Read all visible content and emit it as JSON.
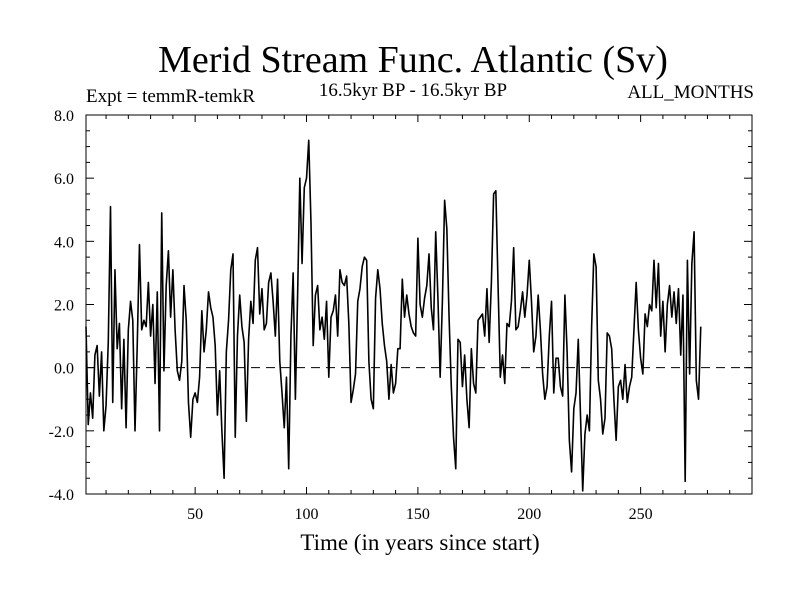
{
  "header": {
    "title": "Merid Stream Func. Atlantic (Sv)",
    "experiment": "Expt = temmR-temkR",
    "period": "16.5kyr BP - 16.5kyr BP",
    "months": "ALL_MONTHS"
  },
  "chart_data": {
    "type": "line",
    "title": "Merid Stream Func. Atlantic (Sv)",
    "xlabel": "Time (in years since start)",
    "ylabel": "",
    "xlim": [
      1,
      300
    ],
    "ylim": [
      -4,
      8
    ],
    "xticks": [
      50,
      100,
      150,
      200,
      250
    ],
    "xtick_labels": [
      "50",
      "100",
      "150",
      "200",
      "250"
    ],
    "yticks": [
      -4,
      -2,
      0,
      2,
      4,
      6,
      8
    ],
    "ytick_labels": [
      "-4.0",
      "-2.0",
      "0.0",
      "2.0",
      "4.0",
      "6.0",
      "8.0"
    ],
    "reference_line": {
      "y": 0,
      "style": "dashed"
    },
    "series": [
      {
        "name": "Merid Stream Func. Atlantic",
        "x_start": 1,
        "x_step": 1,
        "values": [
          1.3,
          -1.8,
          -0.8,
          -1.6,
          0.4,
          0.7,
          -0.9,
          0.5,
          -2.0,
          -1.2,
          0.8,
          5.1,
          -1.1,
          3.1,
          0.6,
          1.4,
          -1.3,
          0.9,
          -1.9,
          1.2,
          2.1,
          1.5,
          -2.0,
          0.7,
          3.9,
          1.2,
          1.5,
          1.3,
          2.7,
          1.0,
          2.0,
          -0.5,
          2.4,
          -2.0,
          4.9,
          -0.1,
          2.6,
          3.7,
          1.6,
          3.1,
          1.2,
          -0.1,
          -0.4,
          0.2,
          2.6,
          1.5,
          -1.1,
          -2.2,
          -1.0,
          -0.8,
          -1.1,
          -0.3,
          1.8,
          0.5,
          1.2,
          2.4,
          1.9,
          1.6,
          0.7,
          -1.5,
          -0.1,
          -2.0,
          -3.5,
          0.5,
          1.5,
          3.1,
          3.6,
          -2.2,
          1.0,
          2.3,
          1.3,
          0.8,
          -1.7,
          0.9,
          2.1,
          1.4,
          3.4,
          3.8,
          1.7,
          2.5,
          1.2,
          1.4,
          2.7,
          3.0,
          2.1,
          1.0,
          2.8,
          0.2,
          -0.8,
          -1.9,
          -0.3,
          -3.2,
          1.0,
          3.0,
          -1.0,
          2.3,
          6.0,
          3.3,
          5.7,
          6.0,
          7.2,
          4.6,
          0.7,
          2.3,
          2.6,
          1.2,
          1.6,
          0.9,
          2.1,
          -0.3,
          1.6,
          1.8,
          2.3,
          1.0,
          3.1,
          2.7,
          2.6,
          2.9,
          1.4,
          -1.1,
          -0.7,
          -0.2,
          2.1,
          2.5,
          3.2,
          3.5,
          3.4,
          0.2,
          -1.0,
          -1.3,
          2.2,
          3.1,
          2.5,
          1.4,
          0.7,
          0.2,
          -1.0,
          0.1,
          -0.8,
          -0.5,
          0.6,
          0.6,
          2.8,
          1.6,
          2.3,
          1.7,
          1.3,
          1.1,
          1.0,
          4.1,
          2.0,
          1.6,
          2.2,
          2.6,
          3.6,
          1.9,
          1.2,
          4.3,
          2.2,
          -0.3,
          2.1,
          5.3,
          4.4,
          1.6,
          -0.6,
          -2.2,
          -3.2,
          0.9,
          0.8,
          -0.6,
          0.4,
          -1.0,
          -1.9,
          0.6,
          -0.5,
          -0.8,
          1.5,
          1.6,
          1.7,
          1.0,
          2.5,
          0.8,
          2.7,
          5.5,
          5.6,
          2.6,
          -0.3,
          0.4,
          -0.5,
          1.4,
          1.3,
          2.1,
          3.8,
          1.2,
          1.3,
          1.8,
          2.4,
          1.6,
          2.3,
          3.4,
          2.1,
          0.5,
          1.0,
          2.3,
          1.2,
          -0.2,
          -1.0,
          -0.6,
          1.0,
          2.1,
          -0.8,
          0.3,
          0.3,
          -0.6,
          -0.9,
          2.3,
          0.5,
          -2.3,
          -3.3,
          -1.3,
          -0.8,
          0.9,
          -1.5,
          -3.9,
          -2.1,
          -1.5,
          -2.0,
          1.3,
          3.6,
          3.2,
          -0.4,
          -1.0,
          -2.1,
          -1.6,
          1.1,
          1.0,
          0.6,
          -1.0,
          -2.3,
          -0.6,
          -0.4,
          -1.0,
          0.1,
          -1.1,
          -0.6,
          -0.3,
          1.2,
          2.7,
          1.2,
          0.3,
          -0.2,
          1.7,
          1.3,
          2.0,
          1.8,
          3.4,
          1.9,
          3.3,
          1.0,
          2.1,
          0.5,
          2.0,
          2.6,
          1.6,
          2.4,
          1.4,
          2.5,
          0.4,
          2.3,
          -3.6,
          3.4,
          -0.2,
          3.3,
          4.3,
          -0.4,
          -1.0,
          1.3
        ]
      }
    ]
  }
}
